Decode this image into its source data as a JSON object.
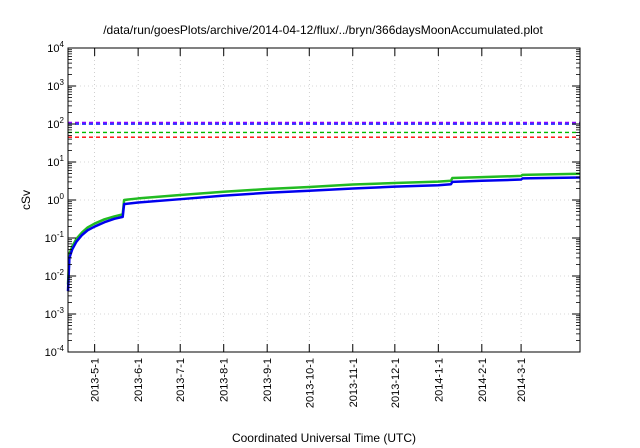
{
  "chart_data": {
    "type": "line",
    "title": "/data/run/goesPlots/archive/2014-04-12/flux/../bryn/366daysMoonAccumulated.plot",
    "xlabel": "Coordinated Universal Time (UTC)",
    "ylabel": "cSv",
    "yscale": "log",
    "ylim": [
      0.0001,
      10000
    ],
    "xlim": [
      "2013-04-12",
      "2014-04-12"
    ],
    "grid": true,
    "y_ticks": [
      {
        "value": 0.0001,
        "base": "10",
        "exp": "-4"
      },
      {
        "value": 0.001,
        "base": "10",
        "exp": "-3"
      },
      {
        "value": 0.01,
        "base": "10",
        "exp": "-2"
      },
      {
        "value": 0.1,
        "base": "10",
        "exp": "-1"
      },
      {
        "value": 1,
        "base": "10",
        "exp": "0"
      },
      {
        "value": 10,
        "base": "10",
        "exp": "1"
      },
      {
        "value": 100,
        "base": "10",
        "exp": "2"
      },
      {
        "value": 1000,
        "base": "10",
        "exp": "3"
      },
      {
        "value": 10000,
        "base": "10",
        "exp": "4"
      }
    ],
    "x_ticks": [
      "2013-5-1",
      "2013-6-1",
      "2013-7-1",
      "2013-8-1",
      "2013-9-1",
      "2013-10-1",
      "2013-11-1",
      "2013-12-1",
      "2014-1-1",
      "2014-2-1",
      "2014-3-1"
    ],
    "x_tick_dates": [
      "2013-05-01",
      "2013-06-01",
      "2013-07-01",
      "2013-08-01",
      "2013-09-01",
      "2013-10-01",
      "2013-11-01",
      "2013-12-01",
      "2014-01-01",
      "2014-02-01",
      "2014-03-01"
    ],
    "reference_lines": [
      {
        "value": 110,
        "color": "#8b00ff",
        "style": "dashed"
      },
      {
        "value": 100,
        "color": "#0000ff",
        "style": "dashed"
      },
      {
        "value": 60,
        "color": "#00bb00",
        "style": "dashed"
      },
      {
        "value": 45,
        "color": "#ff0000",
        "style": "dashed"
      }
    ],
    "series": [
      {
        "color": "#22bb22",
        "points": [
          [
            "2013-04-12",
            0.006
          ],
          [
            "2013-04-13",
            0.038
          ],
          [
            "2013-04-15",
            0.06
          ],
          [
            "2013-04-18",
            0.095
          ],
          [
            "2013-04-22",
            0.14
          ],
          [
            "2013-04-26",
            0.19
          ],
          [
            "2013-05-01",
            0.24
          ],
          [
            "2013-05-08",
            0.31
          ],
          [
            "2013-05-15",
            0.37
          ],
          [
            "2013-05-21",
            0.42
          ],
          [
            "2013-05-22",
            1.0
          ],
          [
            "2013-06-01",
            1.1
          ],
          [
            "2013-07-01",
            1.35
          ],
          [
            "2013-08-01",
            1.65
          ],
          [
            "2013-09-01",
            1.95
          ],
          [
            "2013-10-01",
            2.2
          ],
          [
            "2013-11-01",
            2.55
          ],
          [
            "2013-12-01",
            2.8
          ],
          [
            "2014-01-01",
            3.05
          ],
          [
            "2014-01-10",
            3.2
          ],
          [
            "2014-01-11",
            3.8
          ],
          [
            "2014-02-01",
            4.0
          ],
          [
            "2014-03-01",
            4.3
          ],
          [
            "2014-03-02",
            4.6
          ],
          [
            "2014-04-12",
            4.9
          ]
        ]
      },
      {
        "color": "#0000ee",
        "points": [
          [
            "2013-04-12",
            0.004
          ],
          [
            "2013-04-13",
            0.03
          ],
          [
            "2013-04-15",
            0.05
          ],
          [
            "2013-04-18",
            0.08
          ],
          [
            "2013-04-22",
            0.12
          ],
          [
            "2013-04-26",
            0.16
          ],
          [
            "2013-05-01",
            0.2
          ],
          [
            "2013-05-08",
            0.26
          ],
          [
            "2013-05-15",
            0.32
          ],
          [
            "2013-05-21",
            0.36
          ],
          [
            "2013-05-22",
            0.78
          ],
          [
            "2013-06-01",
            0.86
          ],
          [
            "2013-07-01",
            1.05
          ],
          [
            "2013-08-01",
            1.3
          ],
          [
            "2013-09-01",
            1.55
          ],
          [
            "2013-10-01",
            1.75
          ],
          [
            "2013-11-01",
            2.0
          ],
          [
            "2013-12-01",
            2.25
          ],
          [
            "2014-01-01",
            2.45
          ],
          [
            "2014-01-10",
            2.6
          ],
          [
            "2014-01-11",
            3.0
          ],
          [
            "2014-02-01",
            3.2
          ],
          [
            "2014-03-01",
            3.45
          ],
          [
            "2014-03-02",
            3.7
          ],
          [
            "2014-04-12",
            3.9
          ]
        ]
      }
    ]
  }
}
